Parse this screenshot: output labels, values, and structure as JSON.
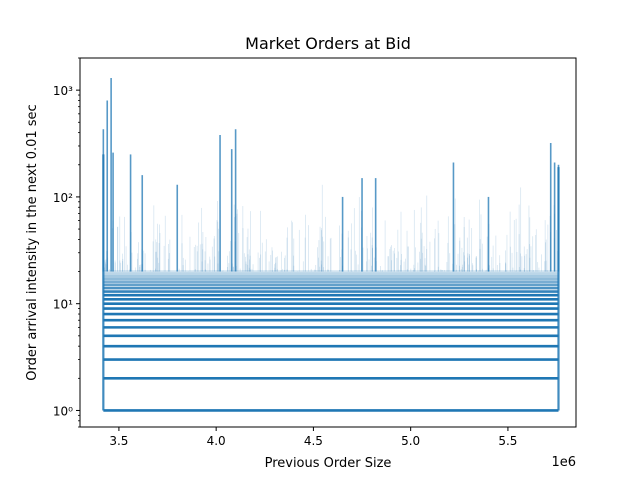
{
  "chart_data": {
    "type": "scatter",
    "title": "Market Orders at Bid",
    "xlabel": "Previous Order Size",
    "ylabel": "Order arrival intensity in the next 0.01 sec",
    "x_offset_label": "1e6",
    "x_scale": "linear",
    "y_scale": "log",
    "xlim": [
      3300000.0,
      5850000.0
    ],
    "ylim": [
      0.7,
      2000
    ],
    "x_range_of_data": [
      3420000.0,
      5760000.0
    ],
    "x_ticks": [
      3500000.0,
      4000000.0,
      4500000.0,
      5000000.0,
      5500000.0
    ],
    "x_tick_labels": [
      "3.5",
      "4.0",
      "4.5",
      "5.0",
      "5.5"
    ],
    "y_ticks": [
      1,
      10,
      100,
      1000
    ],
    "y_tick_labels": [
      "10⁰",
      "10¹",
      "10²",
      "10³"
    ],
    "grid": false,
    "marker_color": "#1f77b4",
    "series": [
      {
        "values": {
          "horizontal_bands_y": [
            1,
            2,
            3,
            4,
            5,
            6,
            7,
            8,
            9,
            10,
            11,
            12,
            13,
            14,
            15,
            16,
            17,
            18,
            19,
            20
          ],
          "peaks": [
            {
              "x": 3420000.0,
              "y": 430
            },
            {
              "x": 3440000.0,
              "y": 800
            },
            {
              "x": 3460000.0,
              "y": 1300
            },
            {
              "x": 3470000.0,
              "y": 260
            },
            {
              "x": 3560000.0,
              "y": 250
            },
            {
              "x": 3620000.0,
              "y": 160
            },
            {
              "x": 3800000.0,
              "y": 130
            },
            {
              "x": 4020000.0,
              "y": 380
            },
            {
              "x": 4080000.0,
              "y": 280
            },
            {
              "x": 4100000.0,
              "y": 430
            },
            {
              "x": 4650000.0,
              "y": 100
            },
            {
              "x": 4750000.0,
              "y": 150
            },
            {
              "x": 4820000.0,
              "y": 150
            },
            {
              "x": 5220000.0,
              "y": 210
            },
            {
              "x": 5400000.0,
              "y": 100
            },
            {
              "x": 5720000.0,
              "y": 320
            },
            {
              "x": 5740000.0,
              "y": 210
            },
            {
              "x": 5760000.0,
              "y": 200
            }
          ]
        }
      }
    ]
  }
}
